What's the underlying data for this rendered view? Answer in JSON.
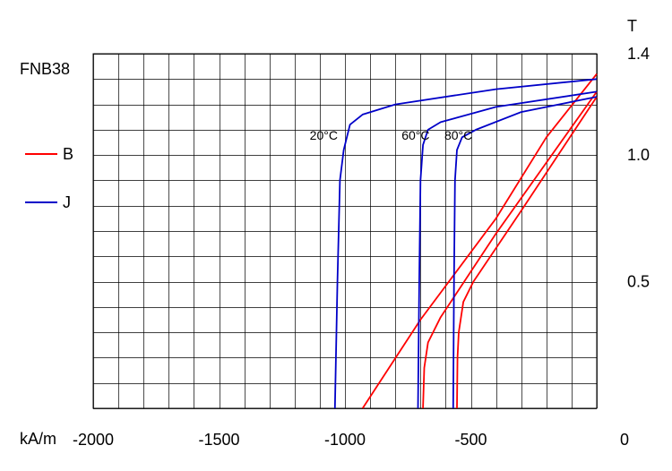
{
  "chart_data": {
    "type": "line",
    "title": "FNB38",
    "xlabel": "kA/m",
    "ylabel": "T",
    "xlim": [
      -2000,
      0
    ],
    "ylim": [
      0,
      1.4
    ],
    "x_ticks": [
      {
        "value": -2000,
        "label": "-2000"
      },
      {
        "value": -1500,
        "label": "-1500"
      },
      {
        "value": -1000,
        "label": "-1000"
      },
      {
        "value": -500,
        "label": "-500"
      },
      {
        "value": 0,
        "label": "0"
      }
    ],
    "y_ticks": [
      {
        "value": 1.4,
        "label": "1.4"
      },
      {
        "value": 1.0,
        "label": "1.0"
      },
      {
        "value": 0.5,
        "label": "0.5"
      }
    ],
    "x_grid_step": 100,
    "y_grid_step": 0.1,
    "grid": true,
    "legend_position": "left",
    "legend": [
      {
        "label": "B",
        "color": "#ff0000"
      },
      {
        "label": "J",
        "color": "#0000c8"
      }
    ],
    "series": [
      {
        "group": "B",
        "temperature": "20°C",
        "color": "#ff0000",
        "points": [
          [
            -930,
            0
          ],
          [
            -700,
            0.35
          ],
          [
            -400,
            0.75
          ],
          [
            -200,
            1.07
          ],
          [
            0,
            1.32
          ]
        ]
      },
      {
        "group": "B",
        "temperature": "60°C",
        "color": "#ff0000",
        "points": [
          [
            -690,
            0
          ],
          [
            -685,
            0.16
          ],
          [
            -670,
            0.26
          ],
          [
            -620,
            0.36
          ],
          [
            -400,
            0.69
          ],
          [
            0,
            1.25
          ]
        ]
      },
      {
        "group": "B",
        "temperature": "80°C",
        "color": "#ff0000",
        "points": [
          [
            -555,
            0
          ],
          [
            -553,
            0.2
          ],
          [
            -548,
            0.3
          ],
          [
            -530,
            0.42
          ],
          [
            -490,
            0.5
          ],
          [
            -300,
            0.78
          ],
          [
            0,
            1.23
          ]
        ]
      },
      {
        "group": "J",
        "temperature": "20°C",
        "color": "#0000c8",
        "points": [
          [
            -1040,
            0
          ],
          [
            -1030,
            0.5
          ],
          [
            -1020,
            0.9
          ],
          [
            -1005,
            1.02
          ],
          [
            -980,
            1.12
          ],
          [
            -930,
            1.16
          ],
          [
            -800,
            1.2
          ],
          [
            -400,
            1.26
          ],
          [
            0,
            1.3
          ]
        ]
      },
      {
        "group": "J",
        "temperature": "60°C",
        "color": "#0000c8",
        "points": [
          [
            -710,
            0
          ],
          [
            -705,
            0.5
          ],
          [
            -700,
            0.9
          ],
          [
            -690,
            1.04
          ],
          [
            -670,
            1.1
          ],
          [
            -620,
            1.13
          ],
          [
            -400,
            1.19
          ],
          [
            0,
            1.25
          ]
        ]
      },
      {
        "group": "J",
        "temperature": "80°C",
        "color": "#0000c8",
        "points": [
          [
            -570,
            0
          ],
          [
            -567,
            0.5
          ],
          [
            -563,
            0.9
          ],
          [
            -555,
            1.02
          ],
          [
            -535,
            1.07
          ],
          [
            -480,
            1.1
          ],
          [
            -300,
            1.17
          ],
          [
            0,
            1.23
          ]
        ]
      }
    ],
    "annotations": [
      {
        "text": "20°C",
        "x": -1140,
        "y": 1.06
      },
      {
        "text": "60°C",
        "x": -775,
        "y": 1.06
      },
      {
        "text": "80°C",
        "x": -605,
        "y": 1.06
      }
    ]
  }
}
